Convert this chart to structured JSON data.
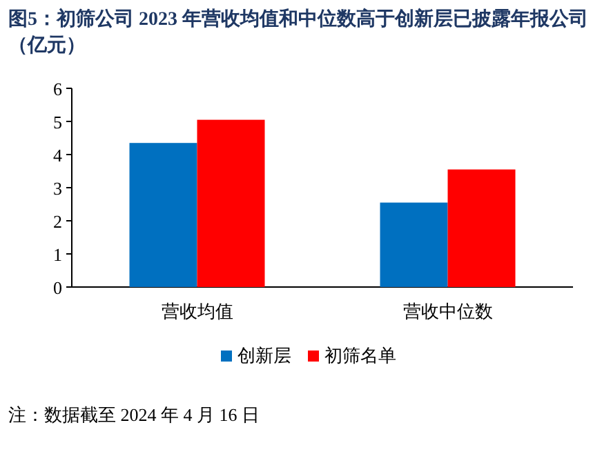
{
  "chart_data": {
    "type": "bar",
    "title": "图5：初筛公司 2023 年营收均值和中位数高于创新层已披露年报公司（亿元）",
    "categories": [
      "营收均值",
      "营收中位数"
    ],
    "series": [
      {
        "name": "创新层",
        "color": "#0070c0",
        "values": [
          4.35,
          2.55
        ]
      },
      {
        "name": "初筛名单",
        "color": "#ff0000",
        "values": [
          5.05,
          3.55
        ]
      }
    ],
    "ylim": [
      0,
      6
    ],
    "yticks": [
      0,
      1,
      2,
      3,
      4,
      5,
      6
    ],
    "grid": false,
    "legend": "bottom",
    "annotations": [
      "注：数据截至 2024 年 4 月 16 日"
    ]
  }
}
